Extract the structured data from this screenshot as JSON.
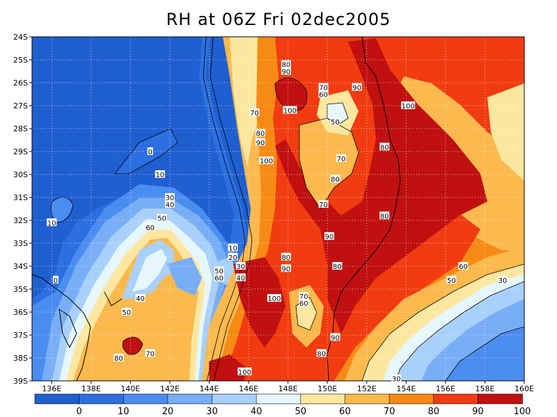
{
  "title": "RH at 06Z Fri 02dec2005",
  "colors": {
    "c0": "#1f5fd0",
    "c10": "#2d6fe0",
    "c20": "#4a8cf0",
    "c30": "#77aef5",
    "c40": "#a8d0fa",
    "c50": "#e6f7ff",
    "c60": "#fde7a0",
    "c70": "#fbb94e",
    "c80": "#f78a14",
    "c90": "#f03c10",
    "c100": "#c01010",
    "coast": "#000000"
  },
  "lon_ticks": [
    "136E",
    "138E",
    "140E",
    "142E",
    "144E",
    "146E",
    "148E",
    "150E",
    "152E",
    "154E",
    "156E",
    "158E",
    "160E"
  ],
  "lat_ticks": [
    "24S",
    "25S",
    "26S",
    "27S",
    "28S",
    "29S",
    "30S",
    "31S",
    "32S",
    "33S",
    "34S",
    "35S",
    "36S",
    "37S",
    "38S",
    "39S"
  ],
  "contour_labels": [
    {
      "text": "0",
      "lon": 141.0,
      "lat": -29.0
    },
    {
      "text": "10",
      "lon": 141.5,
      "lat": -30.0
    },
    {
      "text": "10",
      "lon": 136.0,
      "lat": -32.1
    },
    {
      "text": "0",
      "lon": 136.2,
      "lat": -34.6
    },
    {
      "text": "30",
      "lon": 142.0,
      "lat": -31.0
    },
    {
      "text": "40",
      "lon": 142.0,
      "lat": -31.3
    },
    {
      "text": "50",
      "lon": 141.6,
      "lat": -31.9
    },
    {
      "text": "60",
      "lon": 141.0,
      "lat": -32.3
    },
    {
      "text": "40",
      "lon": 140.5,
      "lat": -35.4
    },
    {
      "text": "50",
      "lon": 139.8,
      "lat": -36.0
    },
    {
      "text": "10",
      "lon": 145.2,
      "lat": -33.2
    },
    {
      "text": "20",
      "lon": 145.2,
      "lat": -33.6
    },
    {
      "text": "30",
      "lon": 145.6,
      "lat": -34.0
    },
    {
      "text": "40",
      "lon": 145.6,
      "lat": -34.5
    },
    {
      "text": "50",
      "lon": 144.5,
      "lat": -34.2
    },
    {
      "text": "60",
      "lon": 144.5,
      "lat": -34.5
    },
    {
      "text": "70",
      "lon": 141.0,
      "lat": -37.8
    },
    {
      "text": "80",
      "lon": 139.4,
      "lat": -38.0
    },
    {
      "text": "100",
      "lon": 145.8,
      "lat": -38.6
    },
    {
      "text": "80",
      "lon": 147.9,
      "lat": -25.2
    },
    {
      "text": "90",
      "lon": 147.9,
      "lat": -25.5
    },
    {
      "text": "100",
      "lon": 148.1,
      "lat": -27.2
    },
    {
      "text": "70",
      "lon": 146.3,
      "lat": -27.3
    },
    {
      "text": "80",
      "lon": 146.6,
      "lat": -28.2
    },
    {
      "text": "90",
      "lon": 146.6,
      "lat": -28.6
    },
    {
      "text": "100",
      "lon": 146.9,
      "lat": -29.4
    },
    {
      "text": "70",
      "lon": 149.8,
      "lat": -26.2
    },
    {
      "text": "60",
      "lon": 149.8,
      "lat": -26.5
    },
    {
      "text": "50",
      "lon": 150.4,
      "lat": -27.7
    },
    {
      "text": "90",
      "lon": 151.5,
      "lat": -26.2
    },
    {
      "text": "100",
      "lon": 154.1,
      "lat": -27.0
    },
    {
      "text": "80",
      "lon": 152.9,
      "lat": -28.8
    },
    {
      "text": "70",
      "lon": 150.7,
      "lat": -29.3
    },
    {
      "text": "80",
      "lon": 150.4,
      "lat": -30.2
    },
    {
      "text": "70",
      "lon": 149.8,
      "lat": -31.3
    },
    {
      "text": "80",
      "lon": 152.9,
      "lat": -31.8
    },
    {
      "text": "90",
      "lon": 150.1,
      "lat": -32.7
    },
    {
      "text": "80",
      "lon": 147.9,
      "lat": -33.6
    },
    {
      "text": "90",
      "lon": 147.9,
      "lat": -34.1
    },
    {
      "text": "80",
      "lon": 150.5,
      "lat": -34.0
    },
    {
      "text": "100",
      "lon": 147.3,
      "lat": -35.4
    },
    {
      "text": "70",
      "lon": 148.8,
      "lat": -35.3
    },
    {
      "text": "60",
      "lon": 148.8,
      "lat": -35.6
    },
    {
      "text": "90",
      "lon": 150.4,
      "lat": -37.1
    },
    {
      "text": "80",
      "lon": 149.7,
      "lat": -37.8
    },
    {
      "text": "60",
      "lon": 156.9,
      "lat": -34.0
    },
    {
      "text": "50",
      "lon": 156.3,
      "lat": -34.6
    },
    {
      "text": "30",
      "lon": 158.9,
      "lat": -34.6
    },
    {
      "text": "30",
      "lon": 153.5,
      "lat": -38.9
    }
  ],
  "colorbar": {
    "labels": [
      "0",
      "10",
      "20",
      "30",
      "40",
      "50",
      "60",
      "70",
      "80",
      "90",
      "100"
    ],
    "bin_colors": [
      "#1f5fd0",
      "#2d6fe0",
      "#4a8cf0",
      "#77aef5",
      "#a8d0fa",
      "#e6f7ff",
      "#fde7a0",
      "#fbb94e",
      "#f78a14",
      "#f03c10",
      "#c01010"
    ]
  }
}
